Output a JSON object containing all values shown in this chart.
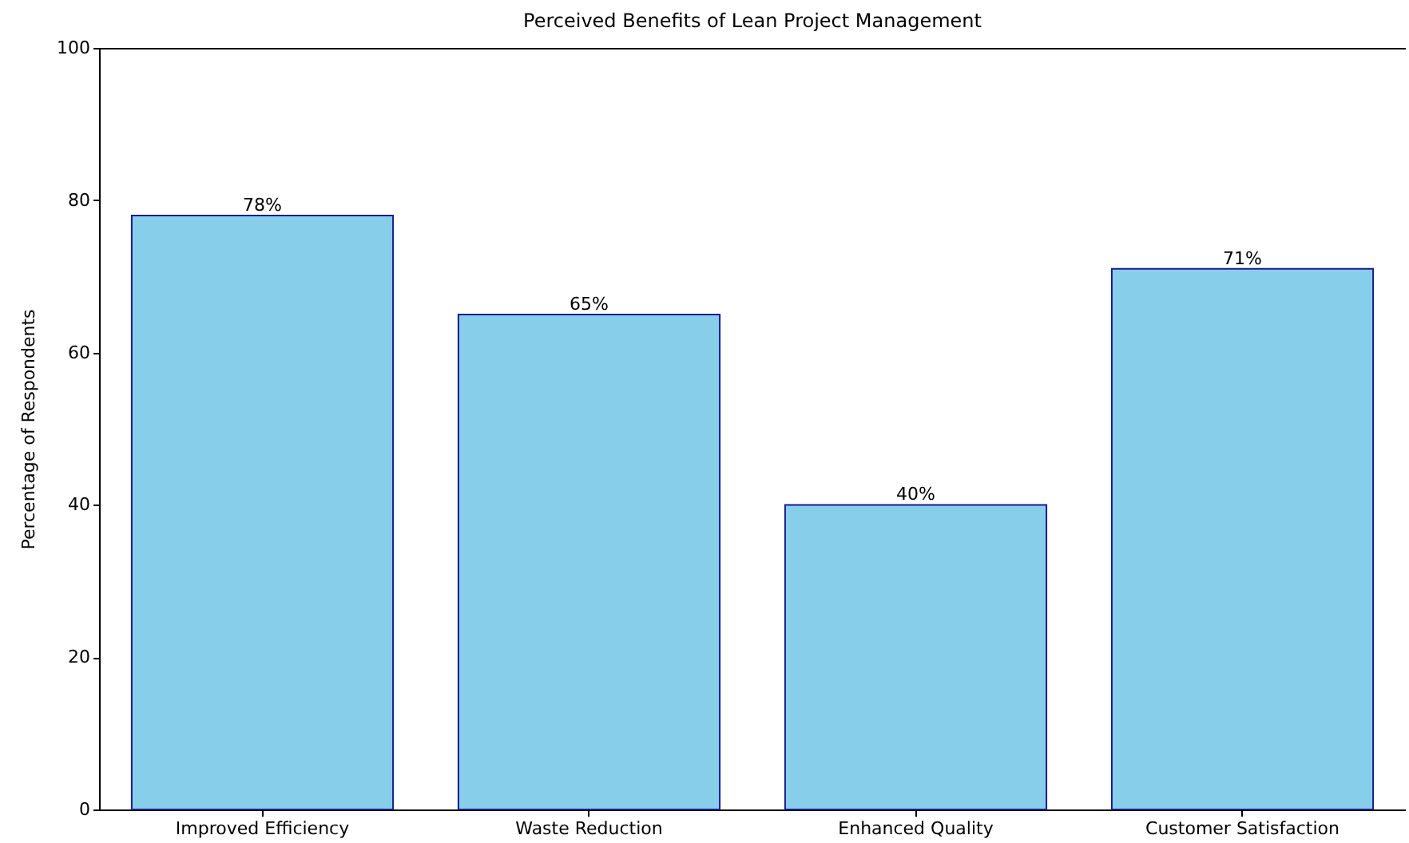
{
  "chart_data": {
    "type": "bar",
    "title": "Perceived Benefits of Lean Project Management",
    "ylabel": "Percentage of Respondents",
    "categories": [
      "Improved Efficiency",
      "Waste Reduction",
      "Enhanced Quality",
      "Customer Satisfaction"
    ],
    "values": [
      78,
      65,
      40,
      71
    ],
    "value_labels": [
      "78%",
      "65%",
      "40%",
      "71%"
    ],
    "color": "#87ceeb",
    "ylim": [
      0,
      100
    ],
    "yticks": [
      0,
      20,
      40,
      60,
      80,
      100
    ],
    "grid": false
  }
}
